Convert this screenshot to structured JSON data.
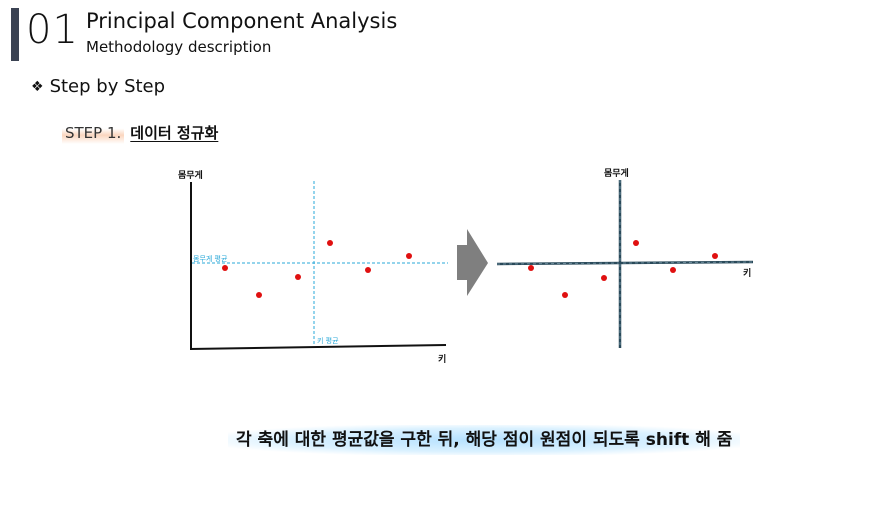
{
  "header": {
    "number": "01",
    "title": "Principal Component Analysis",
    "subtitle": "Methodology description"
  },
  "section": {
    "bullet": "❖",
    "heading": "Step by Step"
  },
  "step": {
    "label": "STEP 1.",
    "title": "데이터 정규화"
  },
  "left_plot": {
    "y_axis_label": "몸무게",
    "x_axis_label": "키",
    "h_mean_label": "몸무게 평균",
    "v_mean_label": "키 평균"
  },
  "right_plot": {
    "y_axis_label": "몸무게",
    "x_axis_label": "키"
  },
  "colors": {
    "point": "#e01010",
    "mean_line": "#2aa8d8",
    "axis": "#111111",
    "centered_axis": "#2a4a5a",
    "arrow": "#7f7f7f"
  },
  "caption": "각 축에 대한 평균값을 구한 뒤, 해당 점이 원점이 되도록 shift 해 줌"
}
